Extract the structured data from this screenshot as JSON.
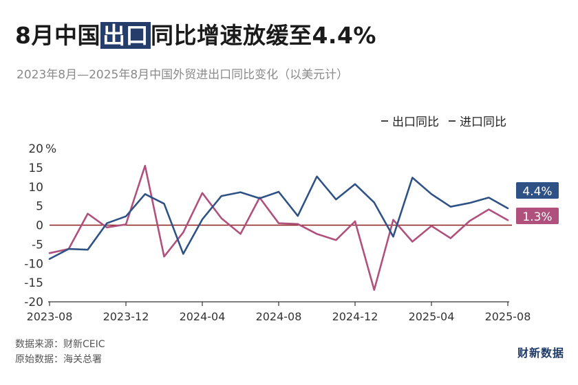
{
  "header": {
    "title_pre": "8月中国",
    "title_highlight": "出口",
    "title_post": "同比增速放缓至4.4%",
    "subtitle": "2023年8月—2025年8月中国外贸进出口同比变化（以美元计）"
  },
  "legend": {
    "export_label": "出口同比",
    "import_label": "进口同比"
  },
  "footer": {
    "source": "数据来源：财新CEIC",
    "original": "原始数据：海关总署",
    "brand": "财新数据"
  },
  "colors": {
    "export": "#2f5286",
    "import": "#b0507c",
    "zero_line": "#8b1a1a",
    "export_label_bg": "#2f5286",
    "import_label_bg": "#b0507c"
  },
  "chart_data": {
    "type": "line",
    "x": [
      "2023-08",
      "2023-09",
      "2023-10",
      "2023-11",
      "2023-12",
      "2024-01",
      "2024-02",
      "2024-03",
      "2024-04",
      "2024-05",
      "2024-06",
      "2024-07",
      "2024-08",
      "2024-09",
      "2024-10",
      "2024-11",
      "2024-12",
      "2025-01",
      "2025-02",
      "2025-03",
      "2025-04",
      "2025-05",
      "2025-06",
      "2025-07",
      "2025-08"
    ],
    "x_tick_labels": [
      "2023-08",
      "2023-12",
      "2024-04",
      "2024-08",
      "2024-12",
      "2025-04",
      "2025-08"
    ],
    "series": [
      {
        "name": "出口同比",
        "values": [
          -8.8,
          -6.2,
          -6.4,
          0.5,
          2.3,
          8.1,
          5.6,
          -7.5,
          1.5,
          7.6,
          8.6,
          7.0,
          8.7,
          2.4,
          12.7,
          6.7,
          10.7,
          5.9,
          -3.0,
          12.4,
          8.1,
          4.8,
          5.8,
          7.2,
          4.4
        ],
        "end_label": "4.4%"
      },
      {
        "name": "进口同比",
        "values": [
          -7.3,
          -6.2,
          3.0,
          -0.6,
          0.2,
          15.5,
          -8.2,
          -1.9,
          8.4,
          1.8,
          -2.3,
          7.2,
          0.5,
          0.3,
          -2.3,
          -3.9,
          1.0,
          -16.9,
          1.4,
          -4.3,
          -0.2,
          -3.4,
          1.1,
          4.1,
          1.3
        ],
        "end_label": "1.3%"
      }
    ],
    "y_ticks": [
      20,
      15,
      10,
      5,
      0,
      -5,
      -10,
      -15,
      -20
    ],
    "y_unit": "%",
    "ylim": [
      -20,
      20
    ],
    "grid": false,
    "legend_position": "top-right"
  }
}
